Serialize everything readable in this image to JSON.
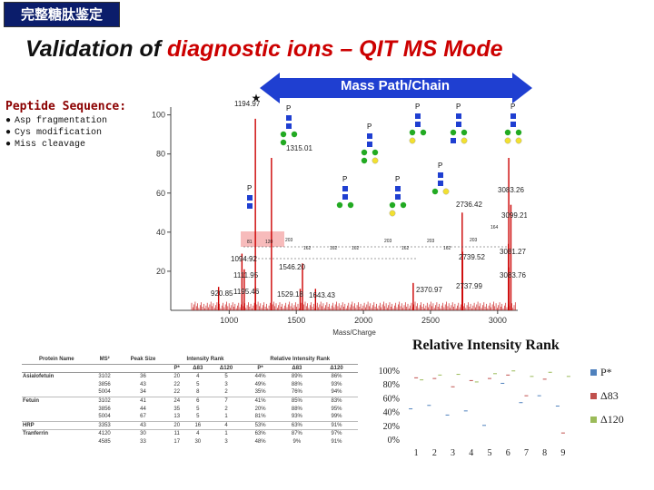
{
  "header": {
    "tag": "完整糖肽鉴定",
    "title_part1": "Validation of ",
    "title_part2": "diagnostic ions – QIT MS Mode"
  },
  "arrow_label": "Mass Path/Chain",
  "peptide": {
    "heading": "Peptide Sequence:",
    "items": [
      "Asp fragmentation",
      "Cys modification",
      "Miss cleavage"
    ]
  },
  "spectrum": {
    "y_ticks": [
      "100",
      "80",
      "60",
      "40",
      "20"
    ],
    "x_ticks": [
      "1000",
      "1500",
      "2000",
      "2500",
      "3000"
    ],
    "x_label": "Mass/Charge",
    "peak_labels": [
      {
        "text": "1194.97",
        "mz": 1195,
        "int": 98
      },
      {
        "text": "1315.01",
        "mz": 1315,
        "int": 78
      },
      {
        "text": "1094.92",
        "mz": 1095,
        "int": 29
      },
      {
        "text": "1111.95",
        "mz": 1112,
        "int": 21
      },
      {
        "text": "920.85",
        "mz": 921,
        "int": 12
      },
      {
        "text": "1195.46",
        "mz": 1195,
        "int": 12
      },
      {
        "text": "1546.20",
        "mz": 1546,
        "int": 24
      },
      {
        "text": "1529.18",
        "mz": 1529,
        "int": 11
      },
      {
        "text": "1643.43",
        "mz": 1643,
        "int": 11
      },
      {
        "text": "2370.97",
        "mz": 2371,
        "int": 14
      },
      {
        "text": "2736.42",
        "mz": 2736,
        "int": 50
      },
      {
        "text": "2739.52",
        "mz": 2739,
        "int": 30
      },
      {
        "text": "2737.99",
        "mz": 2738,
        "int": 15
      },
      {
        "text": "3083.26",
        "mz": 3083,
        "int": 78
      },
      {
        "text": "3099.21",
        "mz": 3099,
        "int": 54
      },
      {
        "text": "3081.27",
        "mz": 3081,
        "int": 34
      },
      {
        "text": "3083.76",
        "mz": 3084,
        "int": 22
      }
    ],
    "gap_labels": [
      "81",
      "120",
      "203",
      "162",
      "162",
      "162",
      "203",
      "162",
      "203",
      "162",
      "203",
      "164"
    ],
    "star_label": "★",
    "p_label": "P"
  },
  "relative_intensity": {
    "title": "Relative Intensity Rank",
    "y_ticks": [
      "100%",
      "80%",
      "60%",
      "40%",
      "20%",
      "0%"
    ],
    "x_ticks": [
      "1",
      "2",
      "3",
      "4",
      "5",
      "6",
      "7",
      "8",
      "9"
    ],
    "legend": [
      {
        "label": "P*",
        "color": "#4f81bd"
      },
      {
        "label": "Δ83",
        "color": "#c0504d"
      },
      {
        "label": "Δ120",
        "color": "#9bbb59"
      }
    ]
  },
  "table": {
    "headers_top": [
      "Protein Name",
      "MS²",
      "Peak Size",
      "Intensity Rank",
      "Relative Intensity Rank"
    ],
    "headers_sub": [
      "P*",
      "Δ83",
      "Δ120",
      "P*",
      "Δ83",
      "Δ120"
    ],
    "rows": [
      {
        "protein": "Asialofetuin",
        "ms2": "3102",
        "peak": "36",
        "r1": "20",
        "r2": "4",
        "r3": "5",
        "p1": "44%",
        "p2": "89%",
        "p3": "86%"
      },
      {
        "protein": "",
        "ms2": "3856",
        "peak": "43",
        "r1": "22",
        "r2": "5",
        "r3": "3",
        "p1": "49%",
        "p2": "88%",
        "p3": "93%"
      },
      {
        "protein": "",
        "ms2": "5004",
        "peak": "34",
        "r1": "22",
        "r2": "8",
        "r3": "2",
        "p1": "35%",
        "p2": "76%",
        "p3": "94%"
      },
      {
        "protein": "Fetuin",
        "ms2": "3102",
        "peak": "41",
        "r1": "24",
        "r2": "6",
        "r3": "7",
        "p1": "41%",
        "p2": "85%",
        "p3": "83%"
      },
      {
        "protein": "",
        "ms2": "3856",
        "peak": "44",
        "r1": "35",
        "r2": "5",
        "r3": "2",
        "p1": "20%",
        "p2": "88%",
        "p3": "95%"
      },
      {
        "protein": "",
        "ms2": "5004",
        "peak": "67",
        "r1": "13",
        "r2": "5",
        "r3": "1",
        "p1": "81%",
        "p2": "93%",
        "p3": "99%"
      },
      {
        "protein": "HRP",
        "ms2": "3353",
        "peak": "43",
        "r1": "20",
        "r2": "16",
        "r3": "4",
        "p1": "53%",
        "p2": "63%",
        "p3": "91%"
      },
      {
        "protein": "Tranferrin",
        "ms2": "4120",
        "peak": "30",
        "r1": "11",
        "r2": "4",
        "r3": "1",
        "p1": "63%",
        "p2": "87%",
        "p3": "97%"
      },
      {
        "protein": "",
        "ms2": "4585",
        "peak": "33",
        "r1": "17",
        "r2": "30",
        "r3": "3",
        "p1": "48%",
        "p2": "9%",
        "p3": "91%"
      }
    ]
  },
  "chart_data": {
    "type": "scatter",
    "title": "Relative Intensity Rank",
    "x": [
      1,
      2,
      3,
      4,
      5,
      6,
      7,
      8,
      9
    ],
    "ylim": [
      0,
      100
    ],
    "series": [
      {
        "name": "P*",
        "values": [
          44,
          49,
          35,
          41,
          20,
          81,
          53,
          63,
          48
        ]
      },
      {
        "name": "Δ83",
        "values": [
          89,
          88,
          76,
          85,
          88,
          93,
          63,
          87,
          9
        ]
      },
      {
        "name": "Δ120",
        "values": [
          86,
          93,
          94,
          83,
          95,
          99,
          91,
          97,
          91
        ]
      }
    ],
    "legend": "right"
  }
}
